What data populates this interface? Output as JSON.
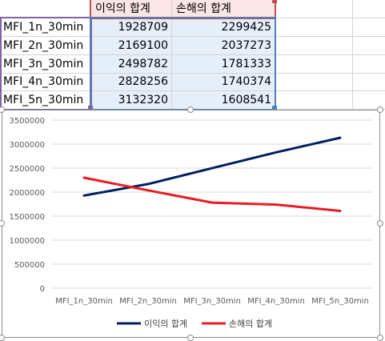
{
  "sheet": {
    "headers": [
      "이익의 합계",
      "손해의 합계"
    ],
    "rows": [
      {
        "label": "MFI_1n_30min",
        "profit": "1928709",
        "loss": "2299425"
      },
      {
        "label": "MFI_2n_30min",
        "profit": "2169100",
        "loss": "2037273"
      },
      {
        "label": "MFI_3n_30min",
        "profit": "2498782",
        "loss": "1781333"
      },
      {
        "label": "MFI_4n_30min",
        "profit": "2828256",
        "loss": "1740374"
      },
      {
        "label": "MFI_5n_30min",
        "profit": "3132320",
        "loss": "1608541"
      }
    ],
    "colors": {
      "header_fill": "#fbe5e5",
      "value_fill": "#e6eefa",
      "header_border": "#c0504d",
      "label_border": "#8064a2",
      "value_border": "#4f81bd"
    }
  },
  "chart_data": {
    "type": "line",
    "categories": [
      "MFI_1n_30min",
      "MFI_2n_30min",
      "MFI_3n_30min",
      "MFI_4n_30min",
      "MFI_5n_30min"
    ],
    "series": [
      {
        "name": "이익의 합계",
        "values": [
          1928709,
          2169100,
          2498782,
          2828256,
          3132320
        ],
        "color": "#002060"
      },
      {
        "name": "손해의 합계",
        "values": [
          2299425,
          2037273,
          1781333,
          1740374,
          1608541
        ],
        "color": "#e81c24"
      }
    ],
    "yticks": [
      "0",
      "500000",
      "1000000",
      "1500000",
      "2000000",
      "2500000",
      "3000000",
      "3500000"
    ],
    "ylim": [
      0,
      3500000
    ],
    "grid": true,
    "legend_position": "bottom"
  }
}
